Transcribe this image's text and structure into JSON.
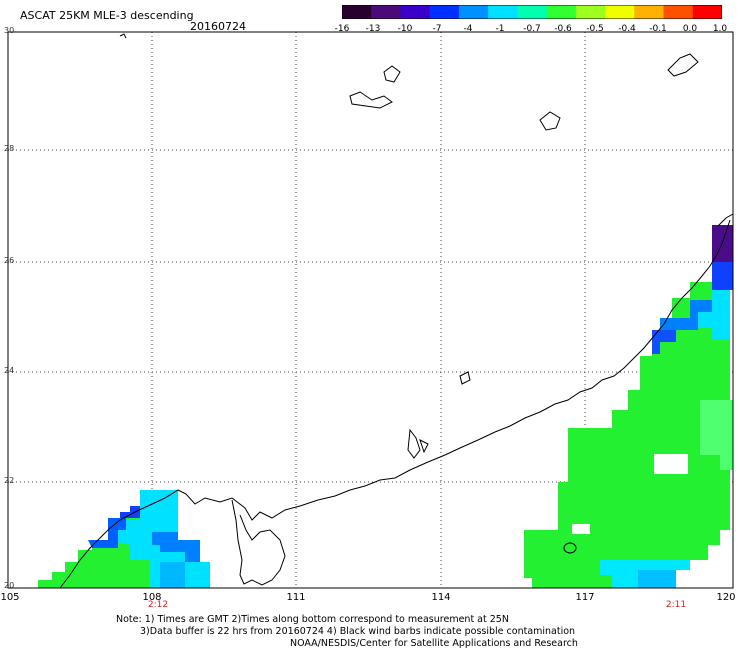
{
  "header": {
    "title": "ASCAT 25KM MLE-3 descending",
    "date": "20160724"
  },
  "colorbar": {
    "labels": [
      "-16",
      "-13",
      "-10",
      "-7",
      "-4",
      "-1",
      "-0.7",
      "-0.6",
      "-0.5",
      "-0.4",
      "-0.1",
      "0.0",
      "1.0"
    ],
    "colors": [
      "#2a0030",
      "#4a0a7a",
      "#3a00c8",
      "#0030ff",
      "#0090ff",
      "#00e0ff",
      "#00ffb0",
      "#30ff30",
      "#9cff20",
      "#f0ff00",
      "#ffb000",
      "#ff5000",
      "#ff0000"
    ]
  },
  "map": {
    "lat_labels": [
      "30",
      "28",
      "26",
      "24",
      "22",
      "20"
    ],
    "lon_labels": [
      "105",
      "108",
      "111",
      "114",
      "117",
      "120"
    ],
    "time_labels": [
      "2:12",
      "2:11"
    ],
    "colors": {
      "green": "#22f030",
      "light_green": "#50ff50",
      "cyan": "#00ecff",
      "sky": "#00b8ff",
      "blue": "#0060ff",
      "purple": "#4b0c8a"
    }
  },
  "footer": {
    "note1": "Note: 1) Times are GMT 2)Times along bottom correspond to measurement at 25N",
    "note2": "3)Data buffer is 22 hrs from 20160724 4) Black wind barbs indicate possible contamination",
    "note3": "NOAA/NESDIS/Center for Satellite Applications and Research"
  }
}
